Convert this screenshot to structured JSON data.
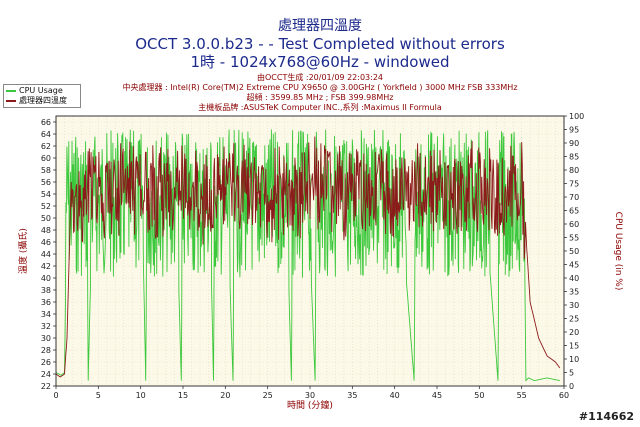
{
  "titles": {
    "line1": "處理器四溫度",
    "line2": "OCCT 3.0.0.b23 -  - Test Completed without errors",
    "line3": "1時 - 1024x768@60Hz - windowed"
  },
  "info": {
    "generated": "由OCCT生成 :20/01/09 22:03:24",
    "cpu": "中央處理器 : Intel(R) Core(TM)2 Extreme CPU X9650 @ 3.00GHz ( Yorkfield ) 3000 MHz FSB 333MHz",
    "clock": "超頻 : 3599.85 MHz ; FSB 399.98MHz",
    "board": "主機板品牌 :ASUSTeK Computer INC.,系列 :Maximus II Formula"
  },
  "legend": [
    {
      "label": "CPU Usage",
      "color": "#3cc83c"
    },
    {
      "label": "處理器四溫度",
      "color": "#8b1a1a"
    }
  ],
  "watermark": "#114662",
  "chart_data": {
    "type": "line",
    "title": "處理器四溫度",
    "xlabel": "時間 (分鐘)",
    "ylabel_left": "溫度 (攝氏)",
    "ylabel_right": "CPU Usage (in %)",
    "xlim": [
      0,
      60
    ],
    "ylim_left": [
      22,
      67
    ],
    "ylim_right": [
      0,
      100
    ],
    "x_ticks": [
      0,
      5,
      10,
      15,
      20,
      25,
      30,
      35,
      40,
      45,
      50,
      55,
      60
    ],
    "y_ticks_left": [
      22,
      24,
      26,
      28,
      30,
      32,
      34,
      36,
      38,
      40,
      42,
      44,
      46,
      48,
      50,
      52,
      54,
      56,
      58,
      60,
      62,
      64,
      66
    ],
    "y_ticks_right": [
      0,
      5,
      10,
      15,
      20,
      25,
      30,
      35,
      40,
      45,
      50,
      55,
      60,
      65,
      70,
      75,
      80,
      85,
      90,
      95,
      100
    ],
    "grid": true,
    "legend_position": "top-left",
    "series": [
      {
        "name": "CPU Usage",
        "axis": "right",
        "color": "#3cc83c",
        "x": [
          0,
          0.6,
          1,
          1.4,
          2,
          3,
          3.6,
          3.8,
          4.5,
          6,
          8,
          10,
          10.6,
          10.8,
          12,
          14,
          14.8,
          15,
          16,
          18,
          18.6,
          18.8,
          20,
          20.9,
          21.1,
          23,
          25,
          27,
          27.8,
          28,
          29.5,
          30.6,
          30.8,
          33,
          35,
          37,
          38.5,
          40,
          42.3,
          42.5,
          44,
          46,
          47.5,
          48.5,
          50,
          52.2,
          52.4,
          54,
          55.2,
          55.5,
          55.8,
          56.5,
          58,
          59.5
        ],
        "y": [
          5,
          4,
          5,
          92,
          95,
          90,
          95,
          2,
          93,
          95,
          92,
          96,
          2,
          94,
          95,
          93,
          2,
          95,
          92,
          95,
          2,
          96,
          94,
          2,
          95,
          92,
          96,
          94,
          2,
          95,
          93,
          2,
          96,
          94,
          92,
          96,
          93,
          95,
          2,
          94,
          96,
          93,
          95,
          92,
          96,
          2,
          94,
          95,
          93,
          2,
          3,
          2,
          3,
          2
        ]
      },
      {
        "name": "處理器四溫度",
        "axis": "left",
        "color": "#8b1a1a",
        "x": [
          0,
          0.5,
          1,
          1.3,
          1.8,
          2.5,
          4,
          6,
          8,
          10,
          12,
          14,
          16,
          18,
          20,
          22,
          24,
          26,
          28,
          30,
          32,
          34,
          36,
          38,
          40,
          42,
          44,
          46,
          48,
          50,
          52,
          54,
          55,
          55.6,
          56,
          57,
          58,
          59,
          59.5
        ],
        "y": [
          24,
          23.5,
          24,
          30,
          56,
          58,
          60,
          59,
          61,
          60,
          59,
          61,
          60,
          59,
          61,
          60,
          58,
          60,
          59,
          61,
          60,
          59,
          60,
          61,
          59,
          60,
          61,
          59,
          60,
          61,
          59,
          60,
          62,
          45,
          36,
          30,
          27,
          26,
          25
        ]
      }
    ]
  }
}
